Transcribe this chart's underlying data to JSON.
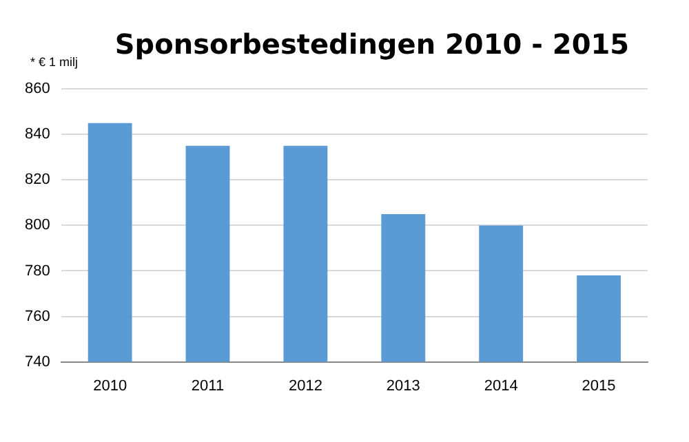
{
  "chart_data": {
    "type": "bar",
    "title": "Sponsorbestedingen 2010 - 2015",
    "ylabel": "* € 1 milj",
    "categories": [
      "2010",
      "2011",
      "2012",
      "2013",
      "2014",
      "2015"
    ],
    "values": [
      845,
      835,
      835,
      805,
      800,
      778
    ],
    "color": "#5b9bd5",
    "ylim": [
      740,
      860
    ],
    "yticks": [
      740,
      760,
      780,
      800,
      820,
      840,
      860
    ],
    "grid": "y"
  }
}
